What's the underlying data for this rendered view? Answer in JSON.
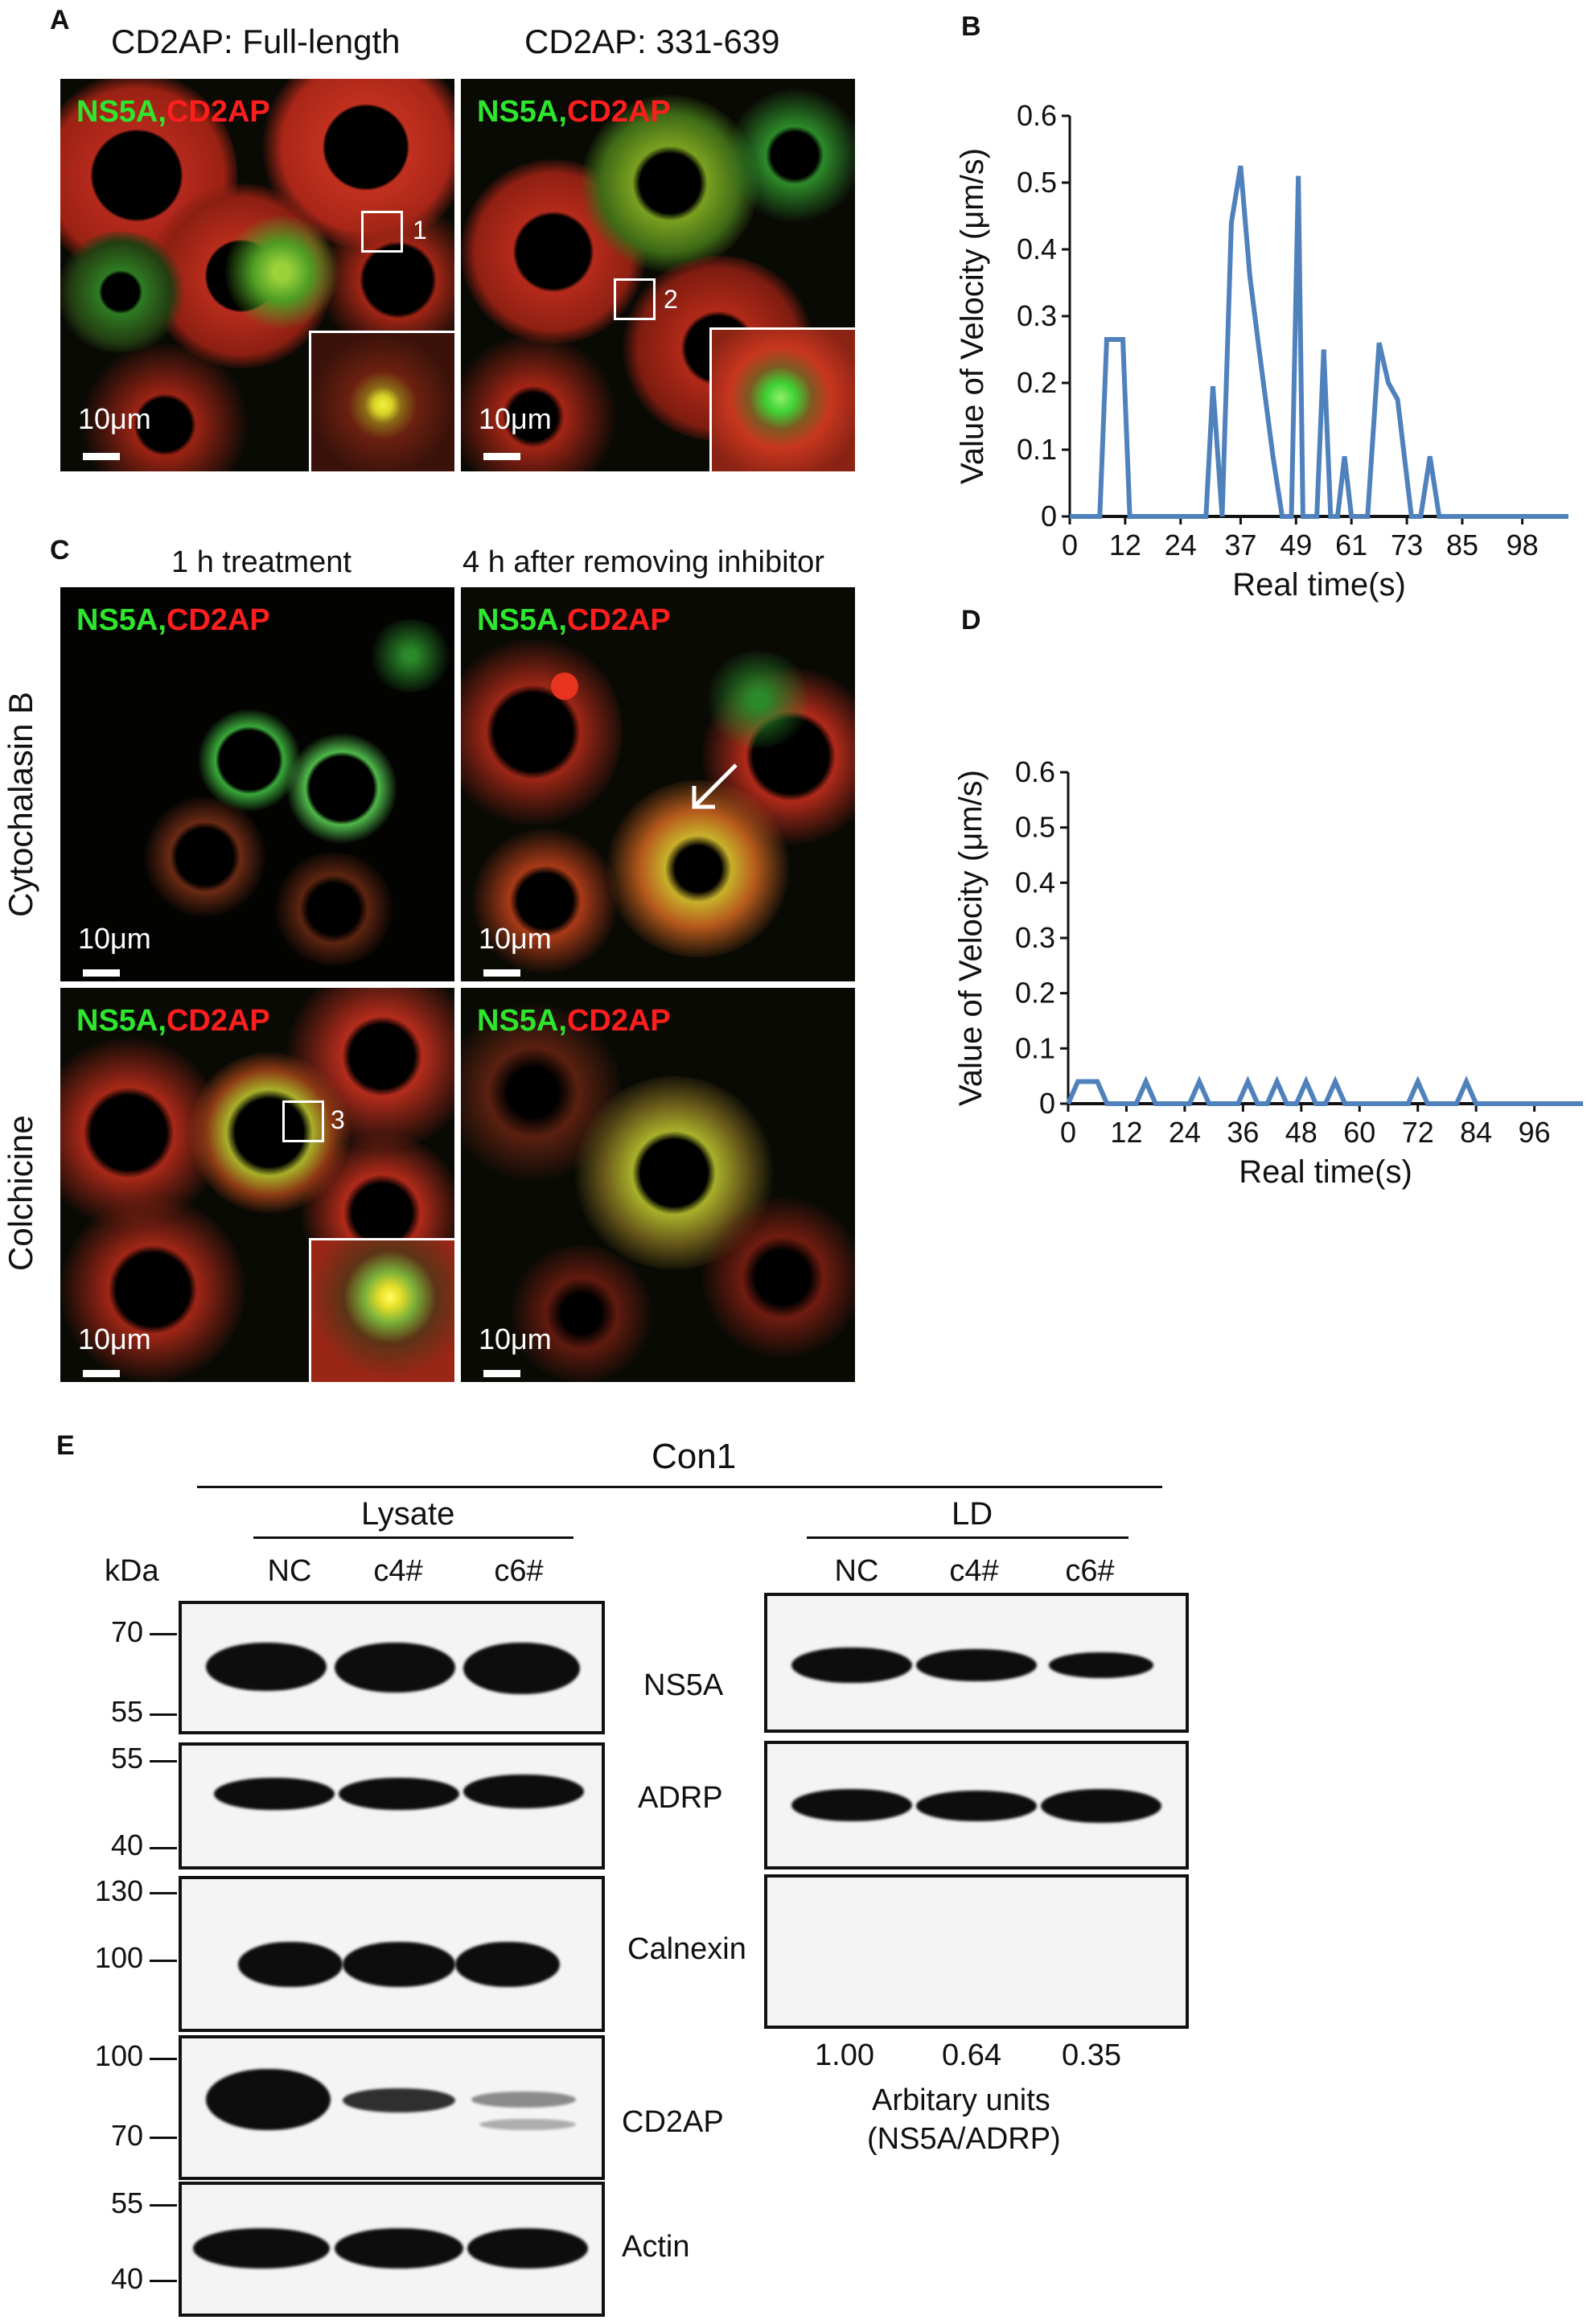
{
  "panels": {
    "A": {
      "label": "A",
      "full_title": "CD2AP: Full-length",
      "trunc_title": "CD2AP: 331-639",
      "tag_green": "NS5A",
      "tag_comma": ",",
      "tag_red": "CD2AP",
      "scale": "10μm",
      "roi1": "1",
      "roi2": "2"
    },
    "C": {
      "label": "C",
      "col1_title": "1 h treatment",
      "col2_title": "4 h after removing inhibitor",
      "row1_label": "Cytochalasin B",
      "row2_label": "Colchicine",
      "tag_green": "NS5A",
      "tag_comma": ",",
      "tag_red": "CD2AP",
      "scale": "10μm",
      "roi3": "3"
    },
    "B": {
      "label": "B"
    },
    "D": {
      "label": "D"
    },
    "E": {
      "label": "E",
      "cell_line": "Con1",
      "group1": "Lysate",
      "group2": "LD",
      "kda": "kDa",
      "lanes": [
        "NC",
        "c4#",
        "c6#"
      ],
      "proteins": [
        "NS5A",
        "ADRP",
        "Calnexin",
        "CD2AP",
        "Actin"
      ],
      "markers": {
        "ns5a": [
          "70",
          "55"
        ],
        "adrp": [
          "55",
          "40"
        ],
        "calnexin": [
          "130",
          "100"
        ],
        "cd2ap": [
          "100",
          "70"
        ],
        "actin": [
          "55",
          "40"
        ]
      },
      "ratios": [
        "1.00",
        "0.64",
        "0.35"
      ],
      "ratio_label_1": "Arbitary units",
      "ratio_label_2": "(NS5A/ADRP)"
    }
  },
  "chart_data": [
    {
      "panel": "B",
      "type": "line",
      "xlabel": "Real time(s)",
      "ylabel": "Value of Velocity (μm/s)",
      "ylim": [
        0,
        0.6
      ],
      "xlim": [
        0,
        108
      ],
      "yticks": [
        0,
        0.1,
        0.2,
        0.3,
        0.4,
        0.5,
        0.6
      ],
      "xtick_labels": [
        "0",
        "12",
        "24",
        "37",
        "49",
        "61",
        "73",
        "85",
        "98"
      ],
      "xtick_values": [
        0,
        12,
        24,
        37,
        49,
        61,
        73,
        85,
        98
      ],
      "grid": false,
      "color": "#4f81bd",
      "series": [
        {
          "x": [
            0,
            6.5,
            8,
            10,
            11.5,
            13,
            28,
            29.5,
            31,
            33,
            35,
            37,
            39,
            41,
            44,
            46,
            48,
            49.5,
            50.5,
            52,
            53.5,
            55,
            56.5,
            58,
            59.5,
            61,
            63,
            64.5,
            67,
            69,
            71,
            74,
            76,
            78,
            80,
            82,
            108
          ],
          "y": [
            0,
            0,
            0.265,
            0.265,
            0.265,
            0,
            0,
            0,
            0.195,
            0,
            0.44,
            0.525,
            0.36,
            0.25,
            0.09,
            0,
            0,
            0.51,
            0,
            0,
            0,
            0.25,
            0,
            0,
            0.09,
            0,
            0,
            0,
            0.26,
            0.2,
            0.175,
            0,
            0,
            0.09,
            0,
            0,
            0
          ]
        }
      ]
    },
    {
      "panel": "D",
      "type": "line",
      "xlabel": "Real time(s)",
      "ylabel": "Value of Velocity (μm/s)",
      "ylim": [
        0,
        0.6
      ],
      "xlim": [
        0,
        106
      ],
      "yticks": [
        0,
        0.1,
        0.2,
        0.3,
        0.4,
        0.5,
        0.6
      ],
      "xtick_labels": [
        "0",
        "12",
        "24",
        "36",
        "48",
        "60",
        "72",
        "84",
        "96"
      ],
      "xtick_values": [
        0,
        12,
        24,
        36,
        48,
        60,
        72,
        84,
        96
      ],
      "grid": false,
      "color": "#4f81bd",
      "series": [
        {
          "x": [
            0,
            2,
            4,
            6,
            8,
            12,
            14,
            16,
            18,
            23,
            25,
            27,
            29,
            35,
            37,
            39,
            41,
            43,
            45,
            47,
            49,
            51,
            53,
            55,
            57,
            59,
            70,
            72,
            74,
            78,
            80,
            82,
            84,
            106
          ],
          "y": [
            0,
            0.04,
            0.04,
            0.04,
            0,
            0,
            0,
            0.04,
            0,
            0,
            0,
            0.04,
            0,
            0,
            0.04,
            0,
            0,
            0.04,
            0,
            0,
            0.04,
            0,
            0,
            0.04,
            0,
            0,
            0,
            0.04,
            0,
            0,
            0,
            0.04,
            0,
            0
          ]
        }
      ]
    }
  ]
}
